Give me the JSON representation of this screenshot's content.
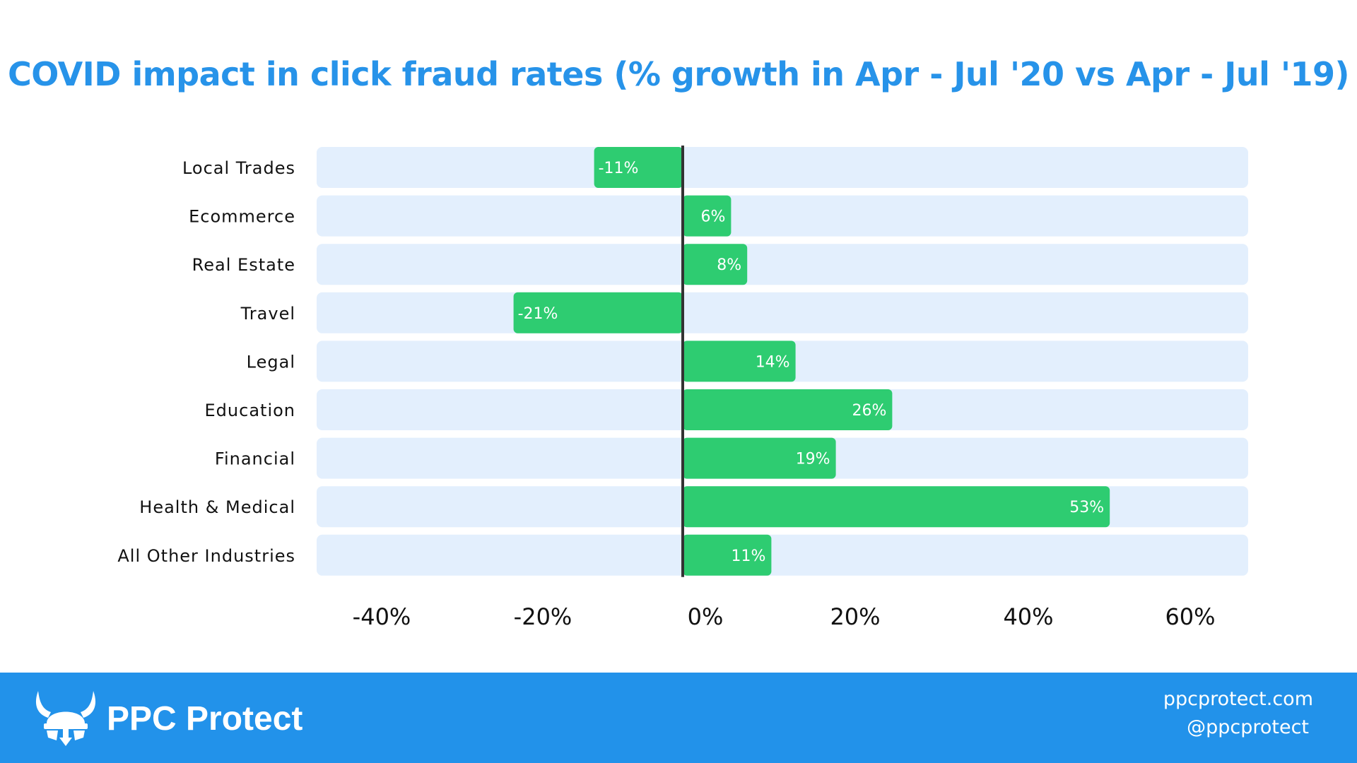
{
  "chart_data": {
    "type": "bar",
    "orientation": "horizontal",
    "title": "COVID impact in click fraud rates (% growth in Apr - Jul '20 vs Apr - Jul '19)",
    "categories": [
      "Local Trades",
      "Ecommerce",
      "Real Estate",
      "Travel",
      "Legal",
      "Education",
      "Financial",
      "Health & Medical",
      "All Other Industries"
    ],
    "values": [
      -11,
      6,
      8,
      -21,
      14,
      26,
      19,
      53,
      11
    ],
    "value_labels": [
      "-11%",
      "6%",
      "8%",
      "-21%",
      "14%",
      "26%",
      "19%",
      "53%",
      "11%"
    ],
    "x_ticks": [
      -40,
      -20,
      0,
      20,
      40,
      60
    ],
    "x_tick_labels": [
      "-40%",
      "-20%",
      "0%",
      "20%",
      "40%",
      "60%"
    ],
    "xlim": [
      -48,
      68
    ],
    "grid": false,
    "legend": "none",
    "bar_color": "#2ecc71",
    "track_color": "#e3effd",
    "zero_line_color": "#333333",
    "title_color": "#2793e9"
  },
  "footer": {
    "brand_name": "PPC Protect",
    "website": "ppcprotect.com",
    "handle": "@ppcprotect",
    "background_color": "#2292ea",
    "logo_icon": "viking-helmet-icon"
  }
}
